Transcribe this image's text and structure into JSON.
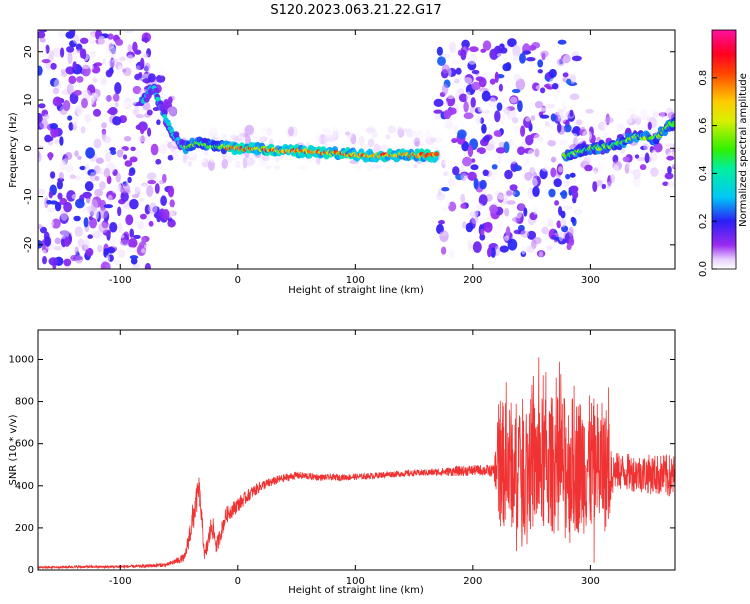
{
  "title": "S120.2023.063.21.22.G17",
  "chart_data": [
    {
      "type": "heatmap",
      "ylabel": "Frequency (Hz)",
      "xlabel": "Height of straight line (km)",
      "xlim": [
        -170,
        372
      ],
      "ylim": [
        -25,
        24.5
      ],
      "x_ticks": [
        "-100",
        "0",
        "100",
        "200",
        "300"
      ],
      "x_tick_values": [
        -100,
        0,
        100,
        200,
        300
      ],
      "y_ticks": [
        "20",
        "10",
        "0",
        "-10",
        "-20"
      ],
      "y_tick_values": [
        20,
        10,
        0,
        -10,
        -20
      ],
      "colorbar": {
        "label": "Normalized spectral amplitude",
        "ticks": [
          "0.0",
          "0.2",
          "0.4",
          "0.6",
          "0.8"
        ],
        "tick_values": [
          0.0,
          0.2,
          0.4,
          0.6,
          0.8
        ],
        "range": [
          0,
          1
        ]
      },
      "ridge": {
        "x": [
          -80,
          -72,
          -65,
          -55,
          -45,
          -35,
          -20,
          0,
          20,
          50,
          80,
          110,
          140,
          168,
          280,
          300,
          320,
          340,
          355,
          368
        ],
        "freq": [
          10,
          13,
          8,
          3,
          0,
          1.2,
          0.3,
          0,
          -0.2,
          -0.6,
          -1,
          -1.5,
          -1.4,
          -1.5,
          -1.5,
          0,
          0.6,
          2.5,
          2,
          5
        ]
      },
      "grid": false
    },
    {
      "type": "line",
      "ylabel": "SNR (10 * v/v)",
      "xlabel": "Height of straight line (km)",
      "xlim": [
        -170,
        372
      ],
      "ylim": [
        0,
        1140
      ],
      "x_ticks": [
        "-100",
        "0",
        "100",
        "200",
        "300"
      ],
      "x_tick_values": [
        -100,
        0,
        100,
        200,
        300
      ],
      "y_ticks": [
        "0",
        "200",
        "400",
        "600",
        "800",
        "1000"
      ],
      "y_tick_values": [
        0,
        200,
        400,
        600,
        800,
        1000
      ],
      "series": [
        {
          "color": "#f03232",
          "x": [
            -170,
            -140,
            -110,
            -80,
            -60,
            -45,
            -38,
            -33,
            -28,
            -22,
            -18,
            -10,
            0,
            10,
            20,
            35,
            50,
            70,
            90,
            110,
            130,
            150,
            170,
            190,
            205,
            218,
            222,
            260,
            300,
            315,
            320,
            340,
            360,
            372
          ],
          "y": [
            12,
            15,
            15,
            18,
            25,
            60,
            250,
            390,
            60,
            220,
            110,
            260,
            310,
            360,
            400,
            430,
            450,
            440,
            440,
            445,
            455,
            460,
            465,
            470,
            475,
            470,
            500,
            500,
            500,
            480,
            470,
            460,
            450,
            440
          ],
          "spread": [
            4,
            6,
            6,
            8,
            10,
            20,
            80,
            60,
            40,
            60,
            40,
            40,
            35,
            30,
            25,
            20,
            18,
            15,
            15,
            15,
            15,
            15,
            18,
            25,
            25,
            30,
            300,
            330,
            330,
            300,
            90,
            90,
            100,
            110
          ]
        }
      ],
      "grid": false
    }
  ]
}
